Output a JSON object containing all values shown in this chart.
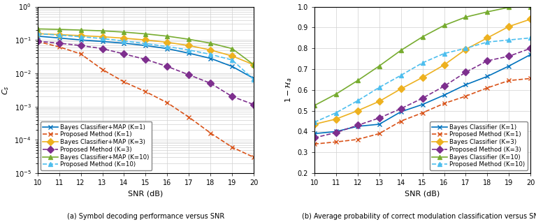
{
  "snr": [
    10,
    11,
    12,
    13,
    14,
    15,
    16,
    17,
    18,
    19,
    20
  ],
  "left": {
    "ylabel": "$C_s$",
    "xlabel": "SNR (dB)",
    "series": [
      {
        "key": "bayes_k1",
        "label": "Bayes Classifier+MAP (K=1)",
        "color": "#0072BD",
        "linestyle": "-",
        "marker": "x",
        "markersize": 5,
        "linewidth": 1.2,
        "values": [
          0.13,
          0.115,
          0.1,
          0.09,
          0.08,
          0.068,
          0.055,
          0.04,
          0.028,
          0.016,
          0.007
        ]
      },
      {
        "key": "proposed_k1",
        "label": "Proposed Method (K=1)",
        "color": "#D95319",
        "linestyle": "--",
        "marker": "x",
        "markersize": 5,
        "linewidth": 1.2,
        "values": [
          0.09,
          0.062,
          0.038,
          0.013,
          0.0055,
          0.0028,
          0.0013,
          0.00048,
          0.00016,
          6e-05,
          3e-05
        ]
      },
      {
        "key": "bayes_k3",
        "label": "Bayes Classifier+MAP (K=3)",
        "color": "#EDB120",
        "linestyle": "-",
        "marker": "D",
        "markersize": 5,
        "linewidth": 1.2,
        "values": [
          0.155,
          0.145,
          0.135,
          0.125,
          0.113,
          0.1,
          0.085,
          0.068,
          0.05,
          0.033,
          0.018
        ]
      },
      {
        "key": "proposed_k3",
        "label": "Proposed Method (K=3)",
        "color": "#7E2F8E",
        "linestyle": "--",
        "marker": "D",
        "markersize": 5,
        "linewidth": 1.2,
        "values": [
          0.092,
          0.08,
          0.068,
          0.055,
          0.038,
          0.026,
          0.016,
          0.009,
          0.005,
          0.002,
          0.00115
        ]
      },
      {
        "key": "bayes_k10",
        "label": "Bayes Classifier+MAP (K=10)",
        "color": "#77AC30",
        "linestyle": "-",
        "marker": "^",
        "markersize": 5,
        "linewidth": 1.2,
        "values": [
          0.215,
          0.208,
          0.198,
          0.188,
          0.172,
          0.152,
          0.13,
          0.105,
          0.08,
          0.055,
          0.018
        ]
      },
      {
        "key": "proposed_k10",
        "label": "Proposed Method (K=10)",
        "color": "#4DBEEE",
        "linestyle": "--",
        "marker": "^",
        "markersize": 5,
        "linewidth": 1.2,
        "values": [
          0.155,
          0.14,
          0.125,
          0.11,
          0.093,
          0.078,
          0.063,
          0.05,
          0.037,
          0.025,
          0.0065
        ]
      }
    ]
  },
  "right": {
    "ylabel": "$1 - \\mathcal{H}_a$",
    "xlabel": "SNR (dB)",
    "ylim": [
      0.2,
      1.0
    ],
    "yticks": [
      0.2,
      0.3,
      0.4,
      0.5,
      0.6,
      0.7,
      0.8,
      0.9,
      1.0
    ],
    "series": [
      {
        "key": "bayes_k1",
        "label": "Bayes Classifier (K=1)",
        "color": "#0072BD",
        "linestyle": "-",
        "marker": "x",
        "markersize": 5,
        "linewidth": 1.2,
        "values": [
          0.39,
          0.4,
          0.425,
          0.435,
          0.495,
          0.53,
          0.575,
          0.625,
          0.665,
          0.715,
          0.77
        ]
      },
      {
        "key": "proposed_k1",
        "label": "Proposed Method (K=1)",
        "color": "#D95319",
        "linestyle": "--",
        "marker": "x",
        "markersize": 5,
        "linewidth": 1.2,
        "values": [
          0.34,
          0.35,
          0.362,
          0.39,
          0.45,
          0.49,
          0.535,
          0.57,
          0.61,
          0.645,
          0.655
        ]
      },
      {
        "key": "bayes_k3",
        "label": "Bayes Classifier (K=3)",
        "color": "#EDB120",
        "linestyle": "-",
        "marker": "D",
        "markersize": 5,
        "linewidth": 1.2,
        "values": [
          0.435,
          0.46,
          0.5,
          0.545,
          0.605,
          0.66,
          0.72,
          0.795,
          0.85,
          0.905,
          0.94
        ]
      },
      {
        "key": "proposed_k3",
        "label": "Proposed Method (K=3)",
        "color": "#7E2F8E",
        "linestyle": "--",
        "marker": "D",
        "markersize": 5,
        "linewidth": 1.2,
        "values": [
          0.37,
          0.395,
          0.43,
          0.465,
          0.51,
          0.56,
          0.618,
          0.685,
          0.74,
          0.762,
          0.8
        ]
      },
      {
        "key": "bayes_k10",
        "label": "Bayes Classifier (K=10)",
        "color": "#77AC30",
        "linestyle": "-",
        "marker": "^",
        "markersize": 5,
        "linewidth": 1.2,
        "values": [
          0.525,
          0.58,
          0.645,
          0.715,
          0.79,
          0.855,
          0.91,
          0.95,
          0.975,
          0.997,
          1.0
        ]
      },
      {
        "key": "proposed_k10",
        "label": "Proposed Method (K=10)",
        "color": "#4DBEEE",
        "linestyle": "--",
        "marker": "^",
        "markersize": 5,
        "linewidth": 1.2,
        "values": [
          0.445,
          0.49,
          0.548,
          0.612,
          0.67,
          0.73,
          0.775,
          0.8,
          0.83,
          0.84,
          0.85
        ]
      }
    ]
  },
  "caption_left": "(a) Symbol decoding performance versus SNR",
  "caption_right": "(b) Average probability of correct modulation classification versus SNR",
  "grid_color": "#d0d0d0",
  "tick_fontsize": 7,
  "label_fontsize": 8,
  "legend_fontsize": 6.2
}
